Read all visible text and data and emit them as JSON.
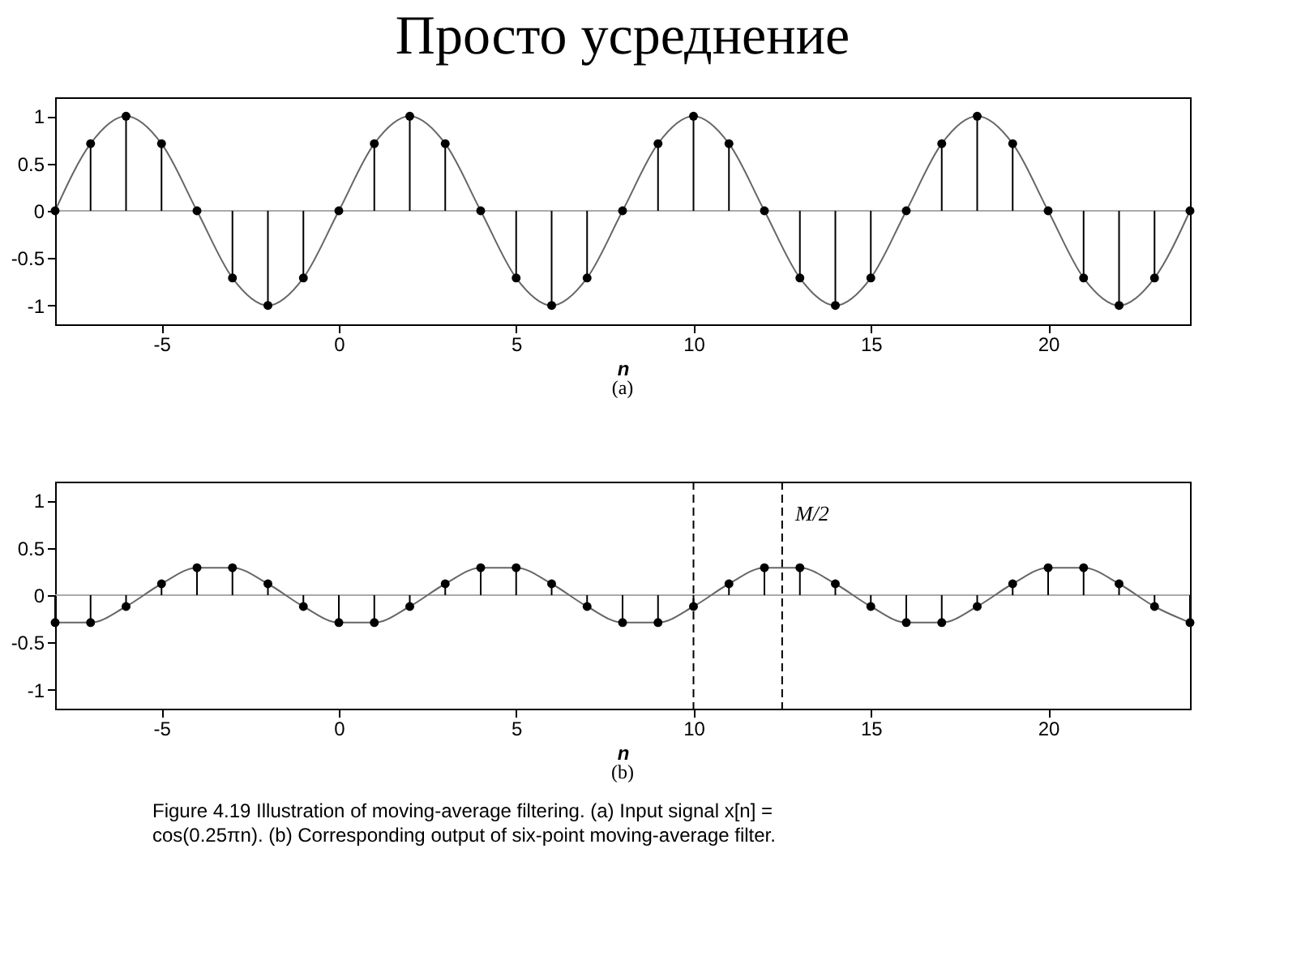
{
  "chart_data": [
    {
      "type": "lollipop",
      "title": "Просто усреднение",
      "xlabel": "n",
      "annotations": [
        "(a)"
      ],
      "x": [
        -8,
        -7,
        -6,
        -5,
        -4,
        -3,
        -2,
        -1,
        0,
        1,
        2,
        3,
        4,
        5,
        6,
        7,
        8,
        9,
        10,
        11,
        12,
        13,
        14,
        15,
        16,
        17,
        18,
        19,
        20,
        21,
        22,
        23,
        24
      ],
      "series": [
        {
          "type": "line",
          "color": "#666666",
          "marker": "none",
          "line_style": "solid",
          "values": [
            0,
            0.71,
            1,
            0.71,
            0,
            -0.71,
            -1,
            -0.71,
            0,
            0.71,
            1,
            0.71,
            0,
            -0.71,
            -1,
            -0.71,
            0,
            0.71,
            1,
            0.71,
            0,
            -0.71,
            -1,
            -0.71,
            0,
            0.71,
            1,
            0.71,
            0,
            -0.71,
            -1,
            -0.71,
            0
          ]
        },
        {
          "color": "#000000",
          "marker": "circle",
          "values": [
            0,
            0.71,
            1,
            0.71,
            0,
            -0.71,
            -1,
            -0.71,
            0,
            0.71,
            1,
            0.71,
            0,
            -0.71,
            -1,
            -0.71,
            0,
            0.71,
            1,
            0.71,
            0,
            -0.71,
            -1,
            -0.71,
            0,
            0.71,
            1,
            0.71,
            0,
            -0.71,
            -1,
            -0.71,
            0
          ]
        }
      ],
      "xlim": [
        -8,
        24
      ],
      "xticks": [
        -5,
        0,
        5,
        10,
        15,
        20
      ],
      "ylim": [
        -1.2,
        1.2
      ],
      "yticks": [
        -1,
        -0.5,
        0,
        0.5,
        1
      ],
      "grid": false,
      "ref_lines": [
        {
          "axis": "y",
          "value": 0,
          "label": null,
          "color": "#aaaaaa",
          "line_style": "solid"
        }
      ]
    },
    {
      "type": "lollipop",
      "xlabel": "n",
      "annotations": [
        "(b)",
        "Figure 4.19  Illustration of moving-average filtering. (a) Input signal x[n] =",
        "cos(0.25πn). (b) Corresponding output of six-point moving-average filter."
      ],
      "x": [
        -8,
        -7,
        -6,
        -5,
        -4,
        -3,
        -2,
        -1,
        0,
        1,
        2,
        3,
        4,
        5,
        6,
        7,
        8,
        9,
        10,
        11,
        12,
        13,
        14,
        15,
        16,
        17,
        18,
        19,
        20,
        21,
        22,
        23,
        24
      ],
      "series": [
        {
          "type": "line",
          "color": "#666666",
          "marker": "none",
          "line_style": "solid",
          "values": [
            -0.29,
            -0.29,
            -0.12,
            0.12,
            0.29,
            0.29,
            0.12,
            -0.12,
            -0.29,
            -0.29,
            -0.12,
            0.12,
            0.29,
            0.29,
            0.12,
            -0.12,
            -0.29,
            -0.29,
            -0.12,
            0.12,
            0.29,
            0.29,
            0.12,
            -0.12,
            -0.29,
            -0.29,
            -0.12,
            0.12,
            0.29,
            0.29,
            0.12,
            -0.12,
            -0.29
          ]
        },
        {
          "color": "#000000",
          "marker": "circle",
          "values": [
            -0.29,
            -0.29,
            -0.12,
            0.12,
            0.29,
            0.29,
            0.12,
            -0.12,
            -0.29,
            -0.29,
            -0.12,
            0.12,
            0.29,
            0.29,
            0.12,
            -0.12,
            -0.29,
            -0.29,
            -0.12,
            0.12,
            0.29,
            0.29,
            0.12,
            -0.12,
            -0.29,
            -0.29,
            -0.12,
            0.12,
            0.29,
            0.29,
            0.12,
            -0.12,
            -0.29
          ]
        }
      ],
      "xlim": [
        -8,
        24
      ],
      "xticks": [
        -5,
        0,
        5,
        10,
        15,
        20
      ],
      "ylim": [
        -1.2,
        1.2
      ],
      "yticks": [
        -1,
        -0.5,
        0,
        0.5,
        1
      ],
      "grid": false,
      "ref_lines": [
        {
          "axis": "y",
          "value": 0,
          "label": null,
          "color": "#aaaaaa",
          "line_style": "solid"
        },
        {
          "axis": "x",
          "value": 10,
          "label": null,
          "color": "#000000",
          "line_style": "dashed"
        },
        {
          "axis": "x",
          "value": 12.5,
          "label": "M/2",
          "color": "#000000",
          "line_style": "dashed"
        }
      ]
    }
  ]
}
